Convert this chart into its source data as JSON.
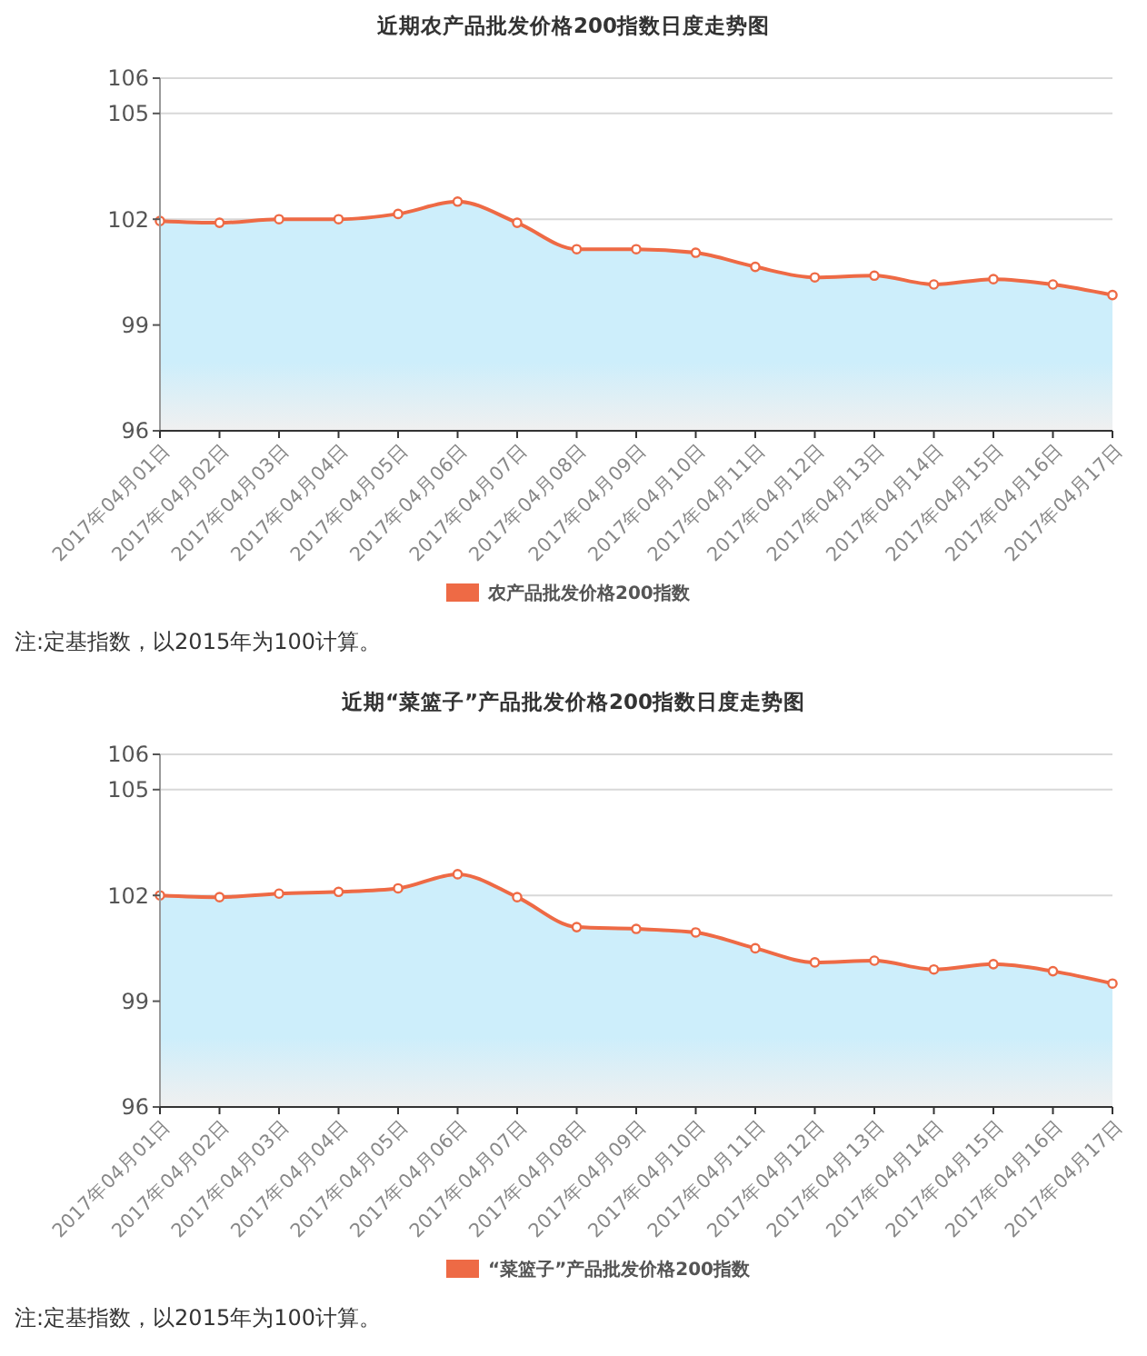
{
  "chart_data": [
    {
      "type": "area",
      "title": "近期农产品批发价格200指数日度走势图",
      "categories": [
        "2017年04月01日",
        "2017年04月02日",
        "2017年04月03日",
        "2017年04月04日",
        "2017年04月05日",
        "2017年04月06日",
        "2017年04月07日",
        "2017年04月08日",
        "2017年04月09日",
        "2017年04月10日",
        "2017年04月11日",
        "2017年04月12日",
        "2017年04月13日",
        "2017年04月14日",
        "2017年04月15日",
        "2017年04月16日",
        "2017年04月17日"
      ],
      "series": [
        {
          "name": "农产品批发价格200指数",
          "color": "#ee6a45",
          "values": [
            101.95,
            101.9,
            102.0,
            102.0,
            102.15,
            102.5,
            101.9,
            101.15,
            101.15,
            101.05,
            100.65,
            100.35,
            100.4,
            100.15,
            100.3,
            100.15,
            99.85
          ]
        }
      ],
      "ylim": [
        96,
        106
      ],
      "yticks": [
        96,
        99,
        102,
        105,
        106
      ],
      "grid": "y",
      "legend": "bottom",
      "marker": "circle",
      "line_style": "solid",
      "annotations": [
        "注:定基指数，以2015年为100计算。"
      ]
    },
    {
      "type": "area",
      "title": "近期“菜篮子”产品批发价格200指数日度走势图",
      "categories": [
        "2017年04月01日",
        "2017年04月02日",
        "2017年04月03日",
        "2017年04月04日",
        "2017年04月05日",
        "2017年04月06日",
        "2017年04月07日",
        "2017年04月08日",
        "2017年04月09日",
        "2017年04月10日",
        "2017年04月11日",
        "2017年04月12日",
        "2017年04月13日",
        "2017年04月14日",
        "2017年04月15日",
        "2017年04月16日",
        "2017年04月17日"
      ],
      "series": [
        {
          "name": "“菜篮子”产品批发价格200指数",
          "color": "#ee6a45",
          "values": [
            102.0,
            101.95,
            102.05,
            102.1,
            102.2,
            102.6,
            101.95,
            101.1,
            101.05,
            100.95,
            100.5,
            100.1,
            100.15,
            99.9,
            100.05,
            99.85,
            99.5
          ]
        }
      ],
      "ylim": [
        96,
        106
      ],
      "yticks": [
        96,
        99,
        102,
        105,
        106
      ],
      "grid": "y",
      "legend": "bottom",
      "marker": "circle",
      "line_style": "solid",
      "annotations": [
        "注:定基指数，以2015年为100计算。"
      ]
    }
  ]
}
